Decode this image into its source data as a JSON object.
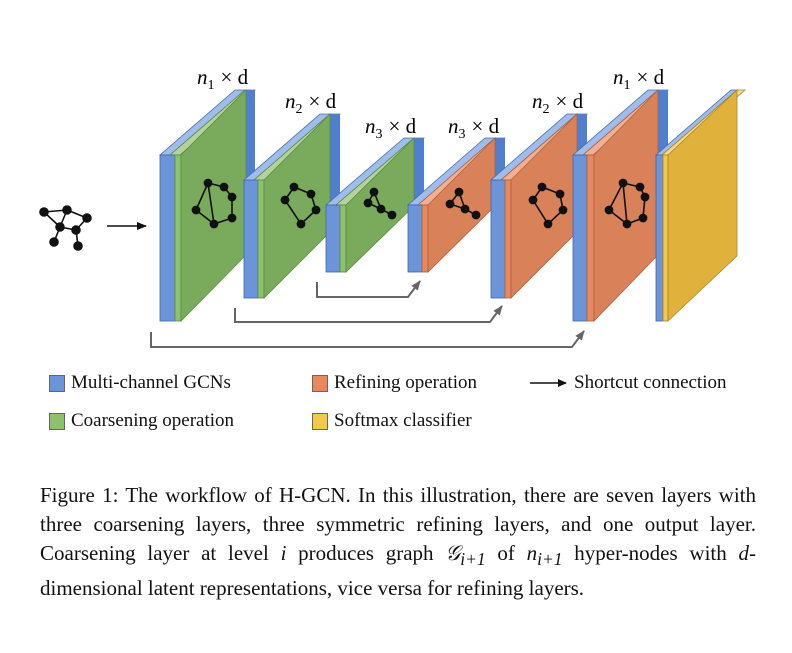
{
  "layer_labels": {
    "layer1": {
      "n": "n",
      "sub": "1",
      "dim": "× d"
    },
    "layer2": {
      "n": "n",
      "sub": "2",
      "dim": "× d"
    },
    "layer3": {
      "n": "n",
      "sub": "3",
      "dim": "× d"
    },
    "layer4": {
      "n": "n",
      "sub": "3",
      "dim": "× d"
    },
    "layer5": {
      "n": "n",
      "sub": "2",
      "dim": "× d"
    },
    "layer6": {
      "n": "n",
      "sub": "1",
      "dim": "× d"
    }
  },
  "legend": {
    "gcn": {
      "label": "Multi-channel GCNs",
      "color": "#6b95d8"
    },
    "refine": {
      "label": "Refining operation",
      "color": "#e8885e"
    },
    "shortcut": {
      "label": "Shortcut connection"
    },
    "coarsen": {
      "label": "Coarsening operation",
      "color": "#8cc26e"
    },
    "softmax": {
      "label": "Softmax classifier",
      "color": "#f2c94c"
    }
  },
  "colors": {
    "green": "#7aab5c",
    "orange": "#d9825a",
    "gold": "#e0b23c",
    "blue": "#6b95d8"
  },
  "caption": {
    "p1": "Figure 1: The workflow of H-GCN. In this illustration, there are seven layers with three coarsening layers, three symmetric refining layers, and one output layer. Coarsening layer at level ",
    "i1": "i",
    "p2": " produces graph ",
    "g": "𝒢",
    "gsub": "i+1",
    "p3": " of ",
    "n": "n",
    "nsub": "i+1",
    "p4": " hyper-nodes with ",
    "d": "d",
    "p5": "-dimensional latent representations, vice versa for refining layers."
  }
}
